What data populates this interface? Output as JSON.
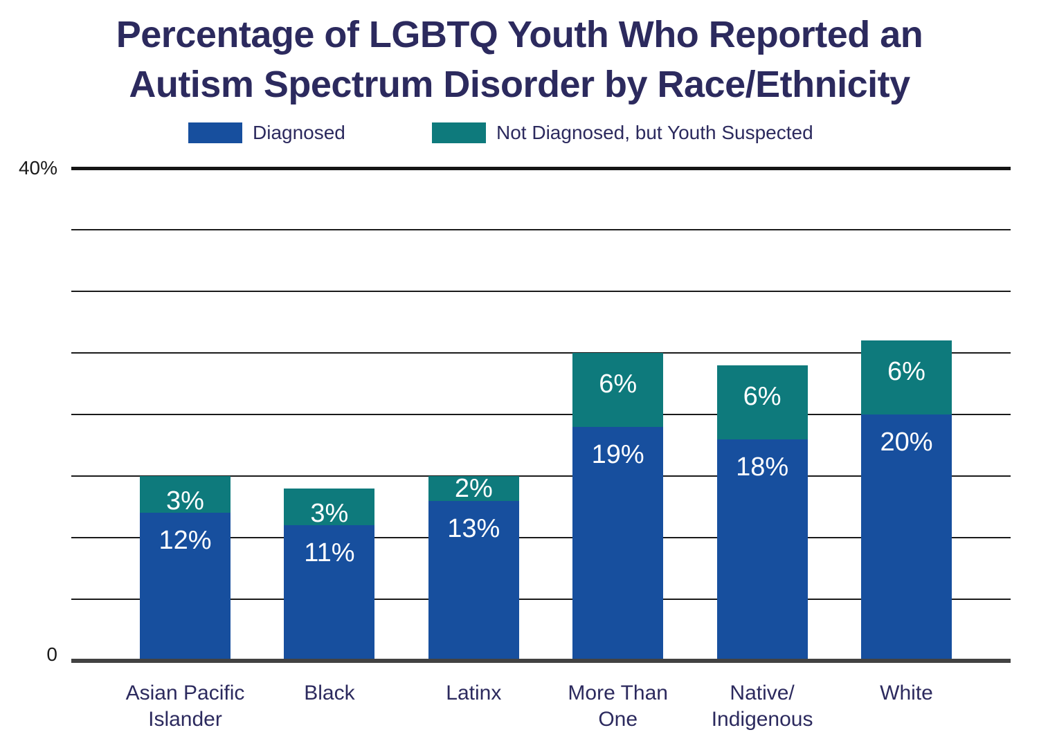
{
  "title": {
    "line1": "Percentage of LGBTQ Youth Who Reported an",
    "line2": "Autism Spectrum Disorder by Race/Ethnicity",
    "color": "#2C2A5E"
  },
  "legend": {
    "items": [
      {
        "label": "Diagnosed",
        "color": "#174F9E"
      },
      {
        "label": "Not Diagnosed, but Youth Suspected",
        "color": "#0E7A7C"
      }
    ]
  },
  "y_axis": {
    "max_label": "40%",
    "min_label": "0"
  },
  "chart_data": {
    "type": "bar",
    "stacked": true,
    "title": "Percentage of LGBTQ Youth Who Reported an Autism Spectrum Disorder by Race/Ethnicity",
    "categories": [
      "Asian Pacific Islander",
      "Black",
      "Latinx",
      "More Than One",
      "Native/Indigenous",
      "White"
    ],
    "category_label_lines": [
      [
        "Asian Pacific",
        "Islander"
      ],
      [
        "Black"
      ],
      [
        "Latinx"
      ],
      [
        "More Than",
        "One"
      ],
      [
        "Native/",
        "Indigenous"
      ],
      [
        "White"
      ]
    ],
    "series": [
      {
        "name": "Diagnosed",
        "color": "#174F9E",
        "values": [
          12,
          11,
          13,
          19,
          18,
          20
        ],
        "labels": [
          "12%",
          "11%",
          "13%",
          "19%",
          "18%",
          "20%"
        ]
      },
      {
        "name": "Not Diagnosed, but Youth Suspected",
        "color": "#0E7A7C",
        "values": [
          3,
          3,
          2,
          6,
          6,
          6
        ],
        "labels": [
          "3%",
          "3%",
          "2%",
          "6%",
          "6%",
          "6%"
        ]
      }
    ],
    "totals": [
      15,
      14,
      15,
      25,
      24,
      26
    ],
    "xlabel": "",
    "ylabel": "",
    "ylim": [
      0,
      40
    ],
    "gridline_step": 5,
    "grid": true,
    "legend_position": "top",
    "axis_colors": {
      "gridline": "#1a1a1a",
      "top_line": "#141414",
      "x_axis": "#424242",
      "tick_text": "#1a1a1a"
    }
  }
}
